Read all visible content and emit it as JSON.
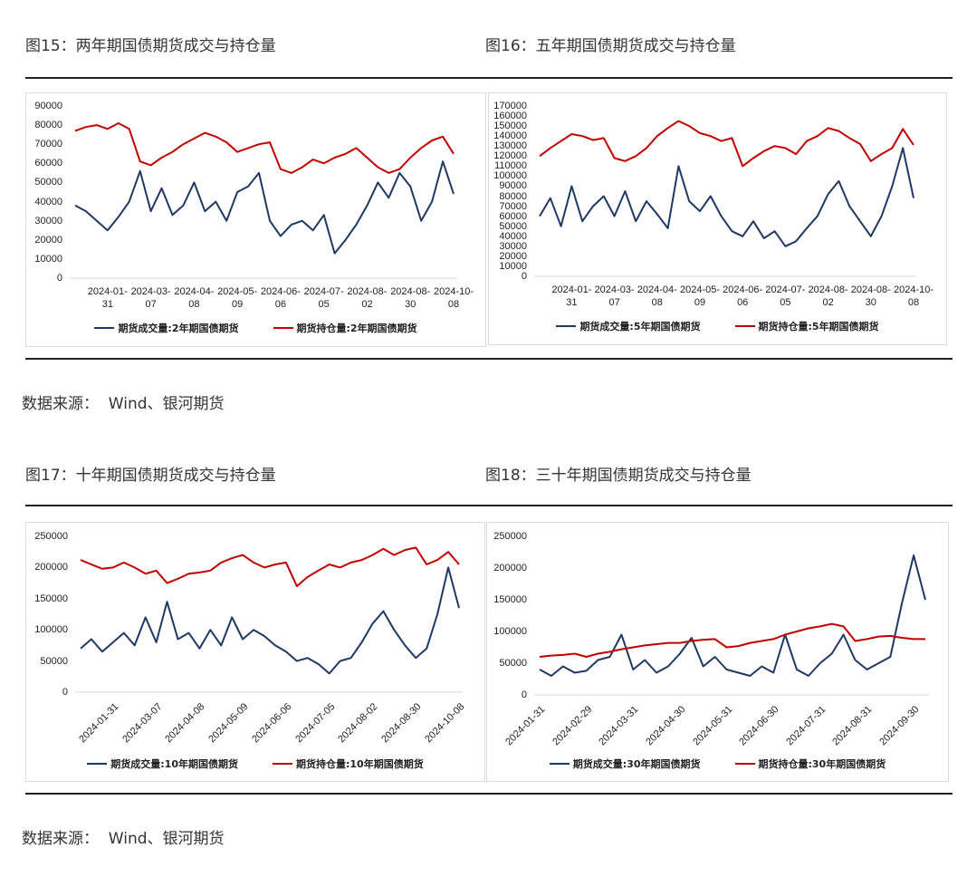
{
  "chart_data": [
    {
      "type": "line",
      "title": "图15：两年期国债期货成交与持仓量",
      "label_style": "wrap",
      "categories": [
        null,
        null,
        null,
        "2024-01-31",
        null,
        null,
        null,
        "2024-03-07",
        null,
        null,
        null,
        "2024-04-08",
        null,
        null,
        null,
        "2024-05-09",
        null,
        null,
        null,
        "2024-06-06",
        null,
        null,
        null,
        "2024-07-05",
        null,
        null,
        null,
        "2024-08-02",
        null,
        null,
        null,
        "2024-08-30",
        null,
        null,
        null,
        "2024-10-08"
      ],
      "ylim": [
        0,
        90000
      ],
      "yticks": [
        0,
        10000,
        20000,
        30000,
        40000,
        50000,
        60000,
        70000,
        80000,
        90000
      ],
      "series": [
        {
          "name": "期货成交量:2年期国债期货",
          "color": "#203864",
          "values": [
            38000,
            35000,
            30000,
            25000,
            32000,
            40000,
            56000,
            35000,
            47000,
            33000,
            38000,
            50000,
            35000,
            40000,
            30000,
            45000,
            48000,
            55000,
            30000,
            22000,
            28000,
            30000,
            25000,
            33000,
            13000,
            20000,
            28000,
            38000,
            50000,
            42000,
            55000,
            48000,
            30000,
            40000,
            61000,
            44000
          ]
        },
        {
          "name": "期货持仓量:2年期国债期货",
          "color": "#c00000",
          "values": [
            77000,
            79000,
            80000,
            78000,
            81000,
            78000,
            61000,
            59000,
            63000,
            66000,
            70000,
            73000,
            76000,
            74000,
            71000,
            66000,
            68000,
            70000,
            71000,
            57000,
            55000,
            58000,
            62000,
            60000,
            63000,
            65000,
            68000,
            63000,
            58000,
            55000,
            57000,
            63000,
            68000,
            72000,
            74000,
            65000
          ]
        }
      ]
    },
    {
      "type": "line",
      "title": "图16：五年期国债期货成交与持仓量",
      "label_style": "wrap",
      "categories": [
        null,
        null,
        null,
        "2024-01-31",
        null,
        null,
        null,
        "2024-03-07",
        null,
        null,
        null,
        "2024-04-08",
        null,
        null,
        null,
        "2024-05-09",
        null,
        null,
        null,
        "2024-06-06",
        null,
        null,
        null,
        "2024-07-05",
        null,
        null,
        null,
        "2024-08-02",
        null,
        null,
        null,
        "2024-08-30",
        null,
        null,
        null,
        "2024-10-08"
      ],
      "ylim": [
        0,
        170000
      ],
      "yticks": [
        0,
        10000,
        20000,
        30000,
        40000,
        50000,
        60000,
        70000,
        80000,
        90000,
        100000,
        110000,
        120000,
        130000,
        140000,
        150000,
        160000,
        170000
      ],
      "series": [
        {
          "name": "期货成交量:5年期国债期货",
          "color": "#203864",
          "values": [
            60000,
            78000,
            50000,
            90000,
            55000,
            70000,
            80000,
            60000,
            85000,
            55000,
            75000,
            62000,
            48000,
            110000,
            75000,
            65000,
            80000,
            60000,
            45000,
            40000,
            55000,
            38000,
            45000,
            30000,
            35000,
            48000,
            60000,
            82000,
            95000,
            70000,
            55000,
            40000,
            60000,
            90000,
            128000,
            78000
          ]
        },
        {
          "name": "期货持仓量:5年期国债期货",
          "color": "#c00000",
          "values": [
            120000,
            128000,
            135000,
            142000,
            140000,
            136000,
            138000,
            118000,
            115000,
            120000,
            128000,
            140000,
            148000,
            155000,
            150000,
            143000,
            140000,
            135000,
            138000,
            110000,
            118000,
            125000,
            130000,
            128000,
            122000,
            135000,
            140000,
            148000,
            145000,
            138000,
            132000,
            115000,
            122000,
            128000,
            147000,
            131000
          ]
        }
      ]
    },
    {
      "type": "line",
      "title": "图17：十年期国债期货成交与持仓量",
      "label_style": "rotate",
      "categories": [
        null,
        null,
        null,
        "2024-01-31",
        null,
        null,
        null,
        "2024-03-07",
        null,
        null,
        null,
        "2024-04-08",
        null,
        null,
        null,
        "2024-05-09",
        null,
        null,
        null,
        "2024-06-06",
        null,
        null,
        null,
        "2024-07-05",
        null,
        null,
        null,
        "2024-08-02",
        null,
        null,
        null,
        "2024-08-30",
        null,
        null,
        null,
        "2024-10-08"
      ],
      "ylim": [
        0,
        250000
      ],
      "yticks": [
        0,
        50000,
        100000,
        150000,
        200000,
        250000
      ],
      "series": [
        {
          "name": "期货成交量:10年期国债期货",
          "color": "#203864",
          "values": [
            70000,
            85000,
            65000,
            80000,
            95000,
            75000,
            120000,
            80000,
            145000,
            85000,
            95000,
            70000,
            100000,
            75000,
            120000,
            85000,
            100000,
            90000,
            75000,
            65000,
            50000,
            55000,
            45000,
            30000,
            50000,
            55000,
            80000,
            110000,
            130000,
            100000,
            75000,
            55000,
            70000,
            125000,
            200000,
            135000
          ]
        },
        {
          "name": "期货持仓量:10年期国债期货",
          "color": "#c00000",
          "values": [
            212000,
            205000,
            198000,
            200000,
            208000,
            200000,
            190000,
            195000,
            175000,
            182000,
            190000,
            192000,
            195000,
            208000,
            215000,
            220000,
            208000,
            200000,
            205000,
            208000,
            170000,
            185000,
            195000,
            205000,
            200000,
            208000,
            212000,
            220000,
            230000,
            220000,
            228000,
            232000,
            205000,
            212000,
            225000,
            205000
          ]
        }
      ]
    },
    {
      "type": "line",
      "title": "图18：三十年期国债期货成交与持仓量",
      "label_style": "rotate",
      "categories": [
        "2024-01-31",
        null,
        null,
        null,
        "2024-02-29",
        null,
        null,
        null,
        "2024-03-31",
        null,
        null,
        null,
        "2024-04-30",
        null,
        null,
        null,
        "2024-05-31",
        null,
        null,
        null,
        "2024-06-30",
        null,
        null,
        null,
        "2024-07-31",
        null,
        null,
        null,
        "2024-08-31",
        null,
        null,
        null,
        "2024-09-30",
        null
      ],
      "ylim": [
        0,
        250000
      ],
      "yticks": [
        0,
        50000,
        100000,
        150000,
        200000,
        250000
      ],
      "series": [
        {
          "name": "期货成交量:30年期国债期货",
          "color": "#203864",
          "values": [
            40000,
            30000,
            45000,
            35000,
            38000,
            55000,
            60000,
            95000,
            40000,
            55000,
            35000,
            45000,
            65000,
            90000,
            45000,
            60000,
            40000,
            35000,
            30000,
            45000,
            35000,
            95000,
            40000,
            30000,
            50000,
            65000,
            95000,
            55000,
            40000,
            50000,
            60000,
            145000,
            220000,
            150000
          ]
        },
        {
          "name": "期货持仓量:30年期国债期货",
          "color": "#c00000",
          "values": [
            60000,
            62000,
            63000,
            65000,
            60000,
            65000,
            68000,
            72000,
            75000,
            78000,
            80000,
            82000,
            82000,
            85000,
            87000,
            88000,
            75000,
            77000,
            82000,
            85000,
            88000,
            95000,
            100000,
            105000,
            108000,
            112000,
            108000,
            85000,
            88000,
            92000,
            93000,
            90000,
            88000,
            88000
          ]
        }
      ]
    }
  ],
  "sources": [
    "数据来源：  Wind、银河期货",
    "数据来源：  Wind、银河期货"
  ]
}
